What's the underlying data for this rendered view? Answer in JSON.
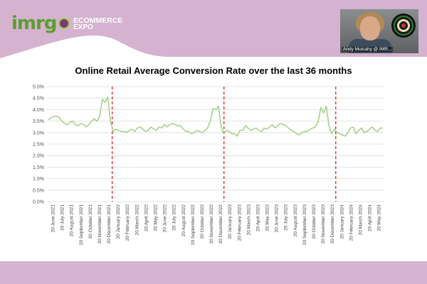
{
  "header": {
    "logo_text": "imrg",
    "event_logo_line1": "ECOMMERCE",
    "event_logo_line2": "EXPO",
    "webcam_caption": "Andy Mulcahy @ IMR...",
    "band_color": "#d5b2cf"
  },
  "chart_data": {
    "type": "line",
    "title": "Online Retail Average Conversion Rate over the last 36 months",
    "xlabel": "",
    "ylabel": "",
    "ylim": [
      0,
      5
    ],
    "y_ticks": [
      "0.0%",
      "0.5%",
      "1.0%",
      "1.5%",
      "2.0%",
      "2.5%",
      "3.0%",
      "3.5%",
      "4.0%",
      "4.5%",
      "5.0%"
    ],
    "x_tick_labels": [
      "20 June 2021",
      "20 July 2021",
      "20 August 2021",
      "20 September 2021",
      "20 October 2021",
      "20 November 2021",
      "20 December 2021",
      "20 January 2022",
      "20 February 2022",
      "20 March 2022",
      "20 April 2022",
      "20 May 2022",
      "20 June 2022",
      "20 July 2022",
      "20 August 2022",
      "20 September 2022",
      "20 October 2022",
      "20 November 2022",
      "20 December 2022",
      "20 January 2023",
      "20 February 2023",
      "20 March 2023",
      "20 April 2023",
      "20 May 2023",
      "20 June 2023",
      "20 July 2023",
      "20 August 2023",
      "20 September 2023",
      "20 October 2023",
      "20 November 2023",
      "20 December 2023",
      "20 January 2024",
      "20 February 2024",
      "20 March 2024",
      "20 April 2024",
      "20 May 2024"
    ],
    "grid": true,
    "line_color": "#a9d18e",
    "marker_line_color": "#e02020",
    "vertical_markers": [
      "20 January 2022",
      "20 January 2023",
      "20 January 2024"
    ],
    "series": [
      {
        "values": [
          3.55,
          3.65,
          3.7,
          3.72,
          3.65,
          3.5,
          3.4,
          3.35,
          3.45,
          3.5,
          3.35,
          3.3,
          3.4,
          3.35,
          3.25,
          3.35,
          3.5,
          3.6,
          3.5,
          3.7,
          4.45,
          4.3,
          4.55,
          3.5,
          3.05,
          3.15,
          3.1,
          3.05,
          3.05,
          3.0,
          3.1,
          3.15,
          3.05,
          3.2,
          3.25,
          3.15,
          3.05,
          3.1,
          3.25,
          3.15,
          3.1,
          3.25,
          3.2,
          3.35,
          3.25,
          3.35,
          3.4,
          3.35,
          3.3,
          3.3,
          3.15,
          3.05,
          3.05,
          2.95,
          3.0,
          3.1,
          3.05,
          3.0,
          3.1,
          3.2,
          3.5,
          4.05,
          4.0,
          4.15,
          3.25,
          2.95,
          3.1,
          3.05,
          2.95,
          2.95,
          2.85,
          3.1,
          3.1,
          3.3,
          3.2,
          3.1,
          3.15,
          3.2,
          3.1,
          3.05,
          3.2,
          3.15,
          3.25,
          3.35,
          3.2,
          3.3,
          3.4,
          3.35,
          3.3,
          3.2,
          3.1,
          3.05,
          2.95,
          2.9,
          3.0,
          3.05,
          3.05,
          3.15,
          3.2,
          3.25,
          3.5,
          4.1,
          3.85,
          4.15,
          3.3,
          2.95,
          3.15,
          3.0,
          2.95,
          2.9,
          2.85,
          3.0,
          3.2,
          3.25,
          2.95,
          3.1,
          3.2,
          3.0,
          3.05,
          3.15,
          3.25,
          3.1,
          3.05,
          3.2,
          3.2
        ]
      }
    ]
  }
}
